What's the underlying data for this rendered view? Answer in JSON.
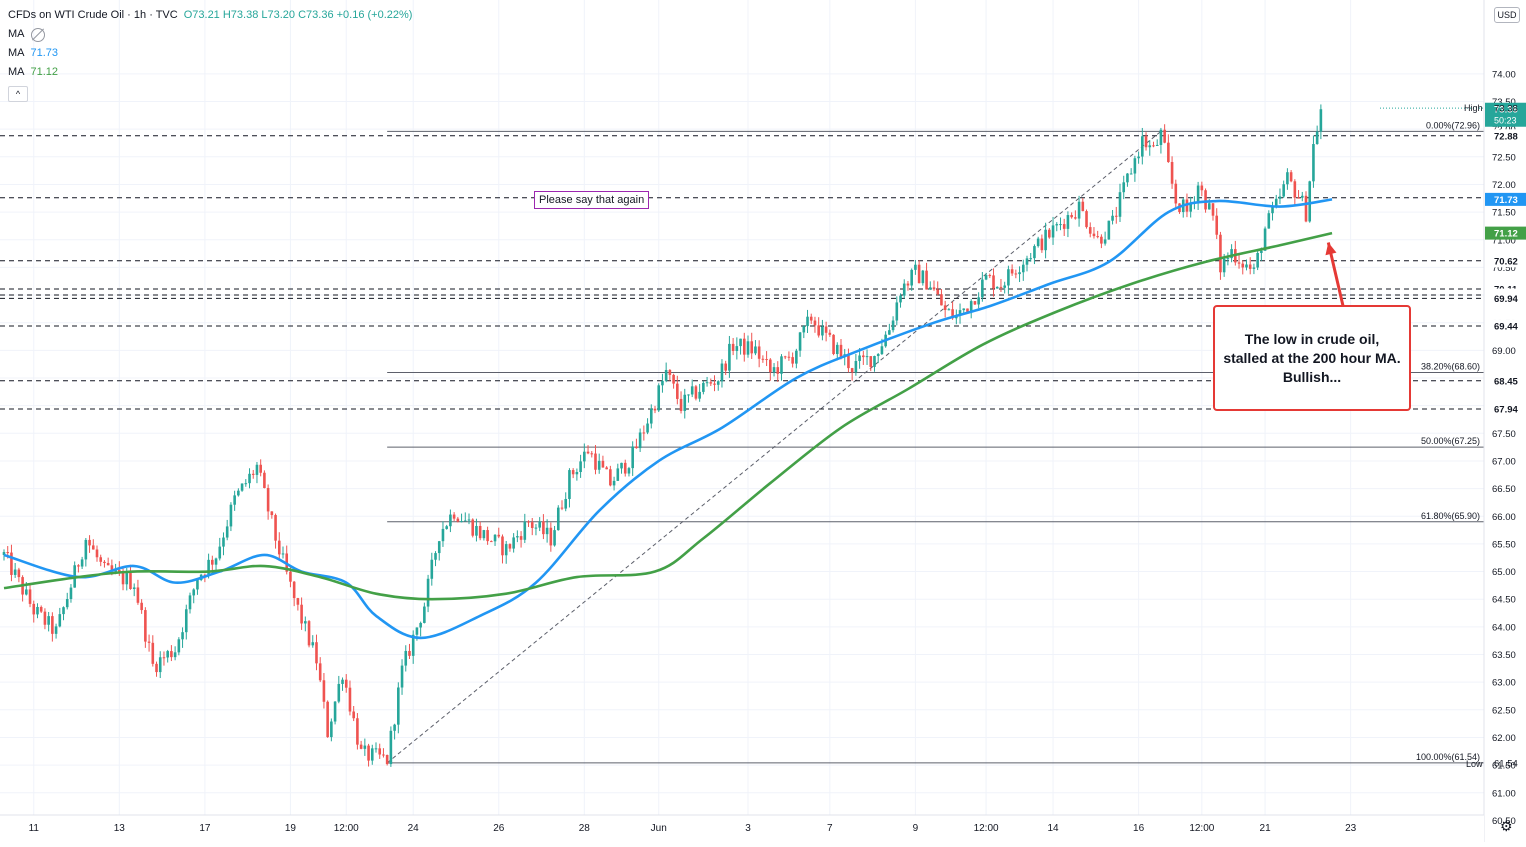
{
  "legend": {
    "title": "CFDs on WTI Crude Oil · 1h · TVC",
    "ohlc": "O73.21 H73.38 L73.20 C73.36 +0.16 (+0.22%)",
    "ma1_label": "MA",
    "ma1_value": "",
    "ma2_label": "MA",
    "ma2_value": "71.73",
    "ma3_label": "MA",
    "ma3_value": "71.12",
    "collapse_label": "^"
  },
  "currency": "USD",
  "note_text": "Please say that again",
  "annotation_text": "The low in crude oil, stalled at the 200 hour MA. Bullish...",
  "colors": {
    "up": "#26a69a",
    "down": "#ef5350",
    "ma100": "#2196f3",
    "ma200": "#43a047",
    "arrow": "#e53935",
    "grid": "#f0f3fa",
    "text": "#131722"
  },
  "chart_data": {
    "type": "candlestick",
    "symbol": "CFDs on WTI Crude Oil",
    "interval": "1h",
    "ylim": [
      60.5,
      74.5
    ],
    "y_ticks": [
      61.0,
      61.5,
      62.0,
      62.5,
      63.0,
      63.5,
      64.0,
      64.5,
      65.0,
      65.5,
      66.0,
      66.5,
      67.0,
      67.5,
      68.0,
      68.5,
      69.0,
      69.5,
      70.0,
      70.5,
      71.0,
      71.5,
      72.0,
      72.5,
      73.0,
      73.5,
      74.0
    ],
    "y_tick_labels": [
      "61.00",
      "",
      "62.00",
      "",
      "63.00",
      "",
      "64.00",
      "",
      "65.00",
      "",
      "66.00",
      "",
      "67.00",
      "",
      "68.00",
      "",
      "69.00",
      "",
      "70.00",
      "",
      "71.00",
      "",
      "72.00",
      "",
      "73.00",
      "",
      "74.00"
    ],
    "y_tick_label_map": {
      "60.5": "60.50",
      "61.0": "61.00",
      "61.5": "61.50",
      "62.0": "62.00",
      "62.5": "62.50",
      "63.0": "63.00",
      "63.5": "63.50",
      "64.0": "64.00",
      "64.5": "64.50",
      "65.0": "65.00",
      "65.5": "65.50",
      "66.0": "66.00",
      "66.5": "66.50",
      "67.0": "67.00",
      "67.5": "67.50",
      "68.0": "68.00",
      "68.5": "68.50",
      "69.0": "69.00",
      "69.5": "69.50",
      "70.0": "70.00",
      "70.5": "70.50",
      "71.0": "71.00",
      "71.5": "71.50",
      "72.0": "72.00",
      "72.5": "72.50",
      "73.0": "73.00",
      "73.5": "73.50",
      "74.0": "74.00"
    },
    "x_ticks": [
      {
        "label": "11",
        "i": 8
      },
      {
        "label": "13",
        "i": 31
      },
      {
        "label": "17",
        "i": 54
      },
      {
        "label": "19",
        "i": 77
      },
      {
        "label": "12:00",
        "i": 92
      },
      {
        "label": "24",
        "i": 110
      },
      {
        "label": "26",
        "i": 133
      },
      {
        "label": "28",
        "i": 156
      },
      {
        "label": "Jun",
        "i": 176
      },
      {
        "label": "3",
        "i": 200
      },
      {
        "label": "7",
        "i": 222
      },
      {
        "label": "9",
        "i": 245
      },
      {
        "label": "12:00",
        "i": 264
      },
      {
        "label": "14",
        "i": 282
      },
      {
        "label": "16",
        "i": 305
      },
      {
        "label": "12:00",
        "i": 322
      },
      {
        "label": "21",
        "i": 339
      },
      {
        "label": "23",
        "i": 362
      }
    ],
    "anchors": [
      [
        0,
        65.3
      ],
      [
        8,
        64.3
      ],
      [
        14,
        63.9
      ],
      [
        22,
        65.6
      ],
      [
        27,
        65.0
      ],
      [
        35,
        64.8
      ],
      [
        40,
        63.3
      ],
      [
        46,
        63.6
      ],
      [
        52,
        64.9
      ],
      [
        57,
        65.3
      ],
      [
        62,
        66.3
      ],
      [
        68,
        66.9
      ],
      [
        73,
        65.6
      ],
      [
        78,
        64.5
      ],
      [
        84,
        63.4
      ],
      [
        87,
        62.1
      ],
      [
        91,
        63.2
      ],
      [
        96,
        61.7
      ],
      [
        103,
        61.6
      ],
      [
        107,
        63.2
      ],
      [
        113,
        64.4
      ],
      [
        117,
        65.7
      ],
      [
        121,
        66.1
      ],
      [
        128,
        65.7
      ],
      [
        135,
        65.4
      ],
      [
        141,
        65.9
      ],
      [
        147,
        65.6
      ],
      [
        152,
        66.7
      ],
      [
        157,
        67.2
      ],
      [
        163,
        66.6
      ],
      [
        169,
        67.1
      ],
      [
        174,
        67.9
      ],
      [
        178,
        68.6
      ],
      [
        182,
        68.0
      ],
      [
        187,
        68.3
      ],
      [
        192,
        68.5
      ],
      [
        196,
        69.1
      ],
      [
        202,
        69.0
      ],
      [
        206,
        68.6
      ],
      [
        212,
        68.9
      ],
      [
        217,
        69.6
      ],
      [
        220,
        69.3
      ],
      [
        224,
        69.0
      ],
      [
        228,
        68.7
      ],
      [
        234,
        68.9
      ],
      [
        238,
        69.4
      ],
      [
        241,
        70.1
      ],
      [
        245,
        70.4
      ],
      [
        249,
        70.2
      ],
      [
        253,
        69.7
      ],
      [
        256,
        69.6
      ],
      [
        260,
        69.9
      ],
      [
        264,
        70.3
      ],
      [
        268,
        70.2
      ],
      [
        272,
        70.5
      ],
      [
        278,
        70.9
      ],
      [
        284,
        71.3
      ],
      [
        289,
        71.6
      ],
      [
        294,
        71.0
      ],
      [
        298,
        71.3
      ],
      [
        302,
        72.1
      ],
      [
        306,
        72.8
      ],
      [
        309,
        72.6
      ],
      [
        311,
        72.9
      ],
      [
        315,
        71.7
      ],
      [
        318,
        71.5
      ],
      [
        321,
        72.0
      ],
      [
        323,
        71.7
      ],
      [
        325,
        71.4
      ],
      [
        327,
        70.5
      ],
      [
        330,
        70.8
      ],
      [
        333,
        70.6
      ],
      [
        336,
        70.4
      ],
      [
        339,
        71.2
      ],
      [
        342,
        71.6
      ],
      [
        345,
        72.1
      ],
      [
        348,
        71.8
      ],
      [
        350,
        71.5
      ],
      [
        352,
        72.7
      ],
      [
        354,
        73.36
      ]
    ],
    "moving_averages": [
      {
        "name": "MA",
        "period": 100,
        "color": "#2196f3",
        "last": 71.73,
        "points": [
          [
            0,
            65.3
          ],
          [
            20,
            64.9
          ],
          [
            35,
            65.1
          ],
          [
            46,
            64.8
          ],
          [
            58,
            65.0
          ],
          [
            70,
            65.3
          ],
          [
            80,
            65.0
          ],
          [
            92,
            64.8
          ],
          [
            100,
            64.2
          ],
          [
            112,
            63.8
          ],
          [
            128,
            64.2
          ],
          [
            143,
            64.8
          ],
          [
            160,
            66.1
          ],
          [
            176,
            67.0
          ],
          [
            193,
            67.6
          ],
          [
            213,
            68.5
          ],
          [
            230,
            69.0
          ],
          [
            250,
            69.5
          ],
          [
            265,
            69.8
          ],
          [
            281,
            70.2
          ],
          [
            297,
            70.6
          ],
          [
            313,
            71.5
          ],
          [
            326,
            71.7
          ],
          [
            343,
            71.6
          ],
          [
            357,
            71.73
          ]
        ]
      },
      {
        "name": "MA",
        "period": 200,
        "color": "#43a047",
        "last": 71.12,
        "points": [
          [
            0,
            64.7
          ],
          [
            20,
            64.9
          ],
          [
            35,
            65.0
          ],
          [
            55,
            65.0
          ],
          [
            70,
            65.1
          ],
          [
            85,
            64.9
          ],
          [
            100,
            64.6
          ],
          [
            115,
            64.5
          ],
          [
            135,
            64.6
          ],
          [
            154,
            64.9
          ],
          [
            175,
            65.0
          ],
          [
            188,
            65.6
          ],
          [
            206,
            66.6
          ],
          [
            225,
            67.6
          ],
          [
            243,
            68.3
          ],
          [
            263,
            69.1
          ],
          [
            283,
            69.7
          ],
          [
            303,
            70.2
          ],
          [
            323,
            70.6
          ],
          [
            343,
            70.9
          ],
          [
            357,
            71.12
          ]
        ]
      }
    ],
    "price_lines": [
      {
        "value": 72.88,
        "label": "72.88",
        "style": "dashed"
      },
      {
        "value": 71.76,
        "label": "71.76",
        "style": "dashed"
      },
      {
        "value": 70.62,
        "label": "70.62",
        "style": "dashed"
      },
      {
        "value": 70.11,
        "label": "70.11",
        "style": "dashed"
      },
      {
        "value": 70.0,
        "label": "70.00",
        "style": "dashed"
      },
      {
        "value": 69.94,
        "label": "69.94",
        "style": "dashed"
      },
      {
        "value": 69.44,
        "label": "69.44",
        "style": "dashed"
      },
      {
        "value": 68.45,
        "label": "68.45",
        "style": "dashed"
      },
      {
        "value": 67.94,
        "label": "67.94",
        "style": "dashed"
      }
    ],
    "fibonacci": {
      "from": {
        "i": 103,
        "price": 61.54
      },
      "to": {
        "i": 311,
        "price": 72.96
      },
      "levels": [
        {
          "label": "0.00%(72.96)",
          "value": 72.96
        },
        {
          "label": "38.20%(68.60)",
          "value": 68.6
        },
        {
          "label": "50.00%(67.25)",
          "value": 67.25
        },
        {
          "label": "61.80%(65.90)",
          "value": 65.9
        },
        {
          "label": "100.00%(61.54)",
          "value": 61.54
        }
      ]
    },
    "last_price": {
      "value": 73.36,
      "label": "73.36",
      "countdown": "50:23"
    },
    "ma_tags": [
      {
        "value": 71.73,
        "label": "71.73",
        "color": "#2196f3"
      },
      {
        "value": 71.12,
        "label": "71.12",
        "color": "#43a047"
      }
    ],
    "high": {
      "label": "High",
      "value": "73.38"
    },
    "low": {
      "label": "Low",
      "value": "61.54"
    },
    "annotation_arrow": {
      "from": {
        "i": 361,
        "price": 69.5
      },
      "to": {
        "i": 356,
        "price": 70.95
      }
    }
  }
}
